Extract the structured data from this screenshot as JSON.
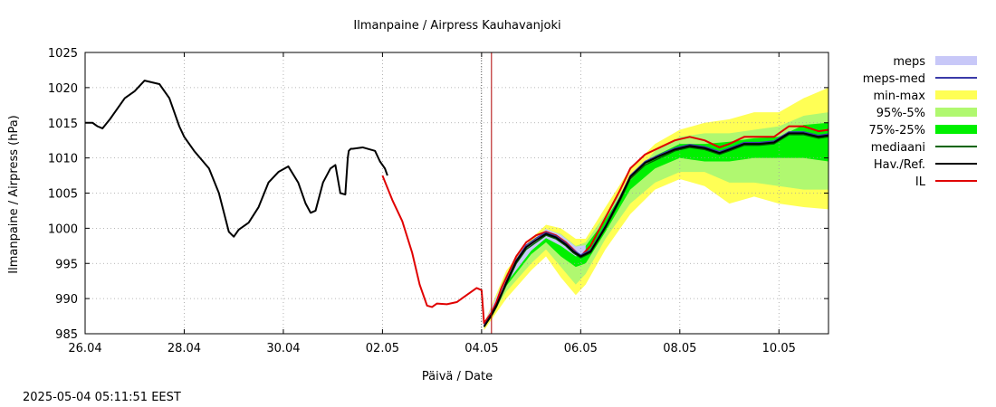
{
  "chart_data": {
    "type": "line",
    "title": "Ilmanpaine / Airpress Kauhavanjoki",
    "xlabel": "Päivä / Date",
    "ylabel": "Ilmanpaine / Airpress (hPa)",
    "timestamp": "2025-05-04 05:11:51 EEST",
    "x_unit": "days from 26.04",
    "xlim": [
      0,
      15
    ],
    "ylim": [
      985,
      1025
    ],
    "x_ticks": [
      {
        "x": 0,
        "label": "26.04"
      },
      {
        "x": 2,
        "label": "28.04"
      },
      {
        "x": 4,
        "label": "30.04"
      },
      {
        "x": 6,
        "label": "02.05"
      },
      {
        "x": 8,
        "label": "04.05"
      },
      {
        "x": 10,
        "label": "06.05"
      },
      {
        "x": 12,
        "label": "08.05"
      },
      {
        "x": 14,
        "label": "10.05"
      }
    ],
    "y_ticks": [
      985,
      990,
      995,
      1000,
      1005,
      1010,
      1015,
      1020,
      1025
    ],
    "grid": true,
    "legend_position": "right",
    "now_marker_x": 8.2,
    "legend": [
      {
        "label": "meps",
        "kind": "band",
        "color": "#c8c8f8"
      },
      {
        "label": "meps-med",
        "kind": "line",
        "color": "#3a3aa8"
      },
      {
        "label": "min-max",
        "kind": "band",
        "color": "#ffff55"
      },
      {
        "label": "95%-5%",
        "kind": "band",
        "color": "#b0f870"
      },
      {
        "label": "75%-25%",
        "kind": "band",
        "color": "#00f000"
      },
      {
        "label": "mediaani",
        "kind": "line",
        "color": "#006400"
      },
      {
        "label": "Hav./Ref.",
        "kind": "line",
        "color": "#000000"
      },
      {
        "label": "IL",
        "kind": "line",
        "color": "#e00000"
      }
    ],
    "series": [
      {
        "name": "Hav./Ref.",
        "color": "#000000",
        "x": [
          0,
          0.15,
          0.25,
          0.35,
          0.5,
          0.8,
          1.0,
          1.2,
          1.5,
          1.7,
          1.9,
          2.0,
          2.2,
          2.5,
          2.7,
          2.9,
          3.0,
          3.1,
          3.3,
          3.5,
          3.7,
          3.9,
          4.1,
          4.3,
          4.45,
          4.55,
          4.65,
          4.8,
          4.95,
          5.05,
          5.15,
          5.25,
          5.3,
          5.32,
          5.36,
          5.4,
          5.6,
          5.85,
          5.95,
          6.05,
          6.1
        ],
        "y": [
          1015,
          1015,
          1014.5,
          1014.2,
          1015.5,
          1018.5,
          1019.5,
          1021,
          1020.5,
          1018.5,
          1014.5,
          1013,
          1011,
          1008.5,
          1005,
          999.5,
          998.8,
          999.8,
          1000.8,
          1003,
          1006.5,
          1008,
          1008.8,
          1006.5,
          1003.5,
          1002.2,
          1002.5,
          1006.5,
          1008.5,
          1009,
          1005,
          1004.8,
          1010,
          1011,
          1011.3,
          1011.3,
          1011.5,
          1011,
          1009.5,
          1008.5,
          1007.5
        ]
      },
      {
        "name": "IL",
        "color": "#e00000",
        "x": [
          6.0,
          6.2,
          6.4,
          6.6,
          6.75,
          6.9,
          7.0,
          7.1,
          7.3,
          7.5,
          7.7,
          7.9,
          8.0,
          8.05,
          8.1,
          8.2,
          8.3,
          8.4,
          8.5,
          8.7,
          8.9,
          9.1,
          9.3,
          9.5,
          9.7,
          9.85,
          10.0,
          10.2,
          10.5,
          10.8,
          11.0,
          11.3,
          11.6,
          11.9,
          12.2,
          12.5,
          12.8,
          13.0,
          13.3,
          13.6,
          13.9,
          14.2,
          14.5,
          14.8,
          15.0
        ],
        "y": [
          1007.5,
          1004,
          1001,
          996.5,
          992,
          989,
          988.8,
          989.3,
          989.2,
          989.5,
          990.5,
          991.5,
          991.2,
          986.5,
          987,
          988,
          989.5,
          991.5,
          993,
          996,
          998,
          999,
          999.5,
          999,
          998,
          997,
          996,
          997.5,
          1001.5,
          1005.5,
          1008.5,
          1010.5,
          1011.5,
          1012.5,
          1013,
          1012.5,
          1011.5,
          1012,
          1013,
          1013,
          1013,
          1014.5,
          1014.5,
          1013.8,
          1014
        ]
      },
      {
        "name": "mediaani",
        "color": "#006400",
        "x": [
          8.05,
          8.2,
          8.3,
          8.5,
          8.7,
          8.9,
          9.1,
          9.3,
          9.5,
          9.7,
          9.85,
          10.0,
          10.2,
          10.5,
          10.8,
          11.0,
          11.3,
          11.6,
          11.9,
          12.2,
          12.5,
          12.8,
          13.0,
          13.3,
          13.6,
          13.9,
          14.2,
          14.5,
          14.8,
          15.0
        ],
        "y": [
          986,
          987.5,
          988.8,
          992,
          995,
          997,
          998,
          999,
          998.5,
          997.5,
          996.5,
          995.8,
          996.5,
          1000,
          1004,
          1007,
          1009,
          1010,
          1011,
          1011.5,
          1011.2,
          1010.5,
          1011,
          1011.8,
          1011.8,
          1012,
          1013.3,
          1013.3,
          1012.8,
          1013
        ]
      },
      {
        "name": "meps-med",
        "color": "#3a3aa8",
        "x": [
          8.05,
          8.2,
          8.3,
          8.5,
          8.7,
          8.9,
          9.1,
          9.3,
          9.5,
          9.7,
          9.85,
          10.0,
          10.2,
          10.5,
          10.8,
          11.0,
          11.3,
          11.6,
          11.9,
          12.2,
          12.5,
          12.8,
          13.0,
          13.3,
          13.6,
          13.9,
          14.2,
          14.5,
          14.8,
          15.0
        ],
        "y": [
          986.2,
          987.8,
          989.1,
          992.4,
          995.5,
          997.6,
          998.6,
          999.4,
          998.9,
          997.9,
          996.9,
          996.2,
          996.9,
          1000.4,
          1004.5,
          1007.5,
          1009.5,
          1010.5,
          1011.4,
          1011.9,
          1011.6,
          1010.9,
          1011.4,
          1012.2,
          1012.2,
          1012.4,
          1013.7,
          1013.7,
          1013.2,
          1013.4
        ]
      },
      {
        "name": "Hav./Ref. forecast",
        "color": "#000000",
        "x": [
          8.05,
          8.2,
          8.3,
          8.5,
          8.7,
          8.9,
          9.1,
          9.3,
          9.5,
          9.7,
          9.85,
          10.0,
          10.2,
          10.5,
          10.8,
          11.0,
          11.3,
          11.6,
          11.9,
          12.2,
          12.5,
          12.8,
          13.0,
          13.3,
          13.6,
          13.9,
          14.2,
          14.5,
          14.8,
          15.0
        ],
        "y": [
          986,
          987.7,
          989,
          992.3,
          995.3,
          997.3,
          998.3,
          999.2,
          998.7,
          997.7,
          996.7,
          996,
          996.7,
          1000.2,
          1004.3,
          1007.3,
          1009.3,
          1010.3,
          1011.2,
          1011.7,
          1011.4,
          1010.7,
          1011.2,
          1012,
          1012,
          1012.2,
          1013.5,
          1013.5,
          1013,
          1013.2
        ]
      }
    ],
    "bands": [
      {
        "name": "min-max",
        "color": "#ffff55",
        "x": [
          8.05,
          8.5,
          9.0,
          9.3,
          9.6,
          9.9,
          10.1,
          10.5,
          11.0,
          11.5,
          12.0,
          12.5,
          13.0,
          13.5,
          14.0,
          14.5,
          15.0
        ],
        "lower": [
          985.5,
          990,
          994,
          996,
          993,
          990.5,
          992,
          997,
          1002,
          1005.5,
          1007,
          1006,
          1003.5,
          1004.5,
          1003.5,
          1003,
          1002.7
        ],
        "upper": [
          986.5,
          994,
          998.5,
          1000.5,
          1000,
          998.5,
          998.5,
          1003,
          1008.5,
          1012,
          1014,
          1015,
          1015.5,
          1016.5,
          1016.5,
          1018.5,
          1020
        ]
      },
      {
        "name": "95%-5%",
        "color": "#b0f870",
        "x": [
          8.05,
          8.5,
          9.0,
          9.3,
          9.6,
          9.9,
          10.1,
          10.5,
          11.0,
          11.5,
          12.0,
          12.5,
          13.0,
          13.5,
          14.0,
          14.5,
          15.0
        ],
        "lower": [
          985.8,
          991,
          995,
          997,
          994.5,
          992,
          993.5,
          998.5,
          1003.5,
          1006.5,
          1008,
          1008,
          1006.5,
          1006.5,
          1006,
          1005.5,
          1005.5
        ],
        "upper": [
          986.3,
          993.5,
          997.8,
          999.8,
          999.2,
          997.5,
          998,
          1002,
          1007,
          1011,
          1013,
          1013.5,
          1013.5,
          1014,
          1014.5,
          1016,
          1016.5
        ]
      },
      {
        "name": "75%-25%",
        "color": "#00f000",
        "x": [
          8.05,
          8.5,
          9.0,
          9.3,
          9.6,
          9.9,
          10.1,
          10.5,
          11.0,
          11.5,
          12.0,
          12.5,
          13.0,
          13.5,
          14.0,
          14.5,
          15.0
        ],
        "lower": [
          985.9,
          991.8,
          996.3,
          998,
          996,
          994.5,
          995,
          999.5,
          1005.5,
          1008.5,
          1010,
          1009.5,
          1009.5,
          1010,
          1010,
          1010,
          1009.5
        ],
        "upper": [
          986.2,
          993,
          997.6,
          999.6,
          998.8,
          997,
          997.5,
          1001.2,
          1006.8,
          1010.3,
          1012,
          1012,
          1012.3,
          1012.8,
          1013,
          1014.7,
          1015
        ]
      },
      {
        "name": "meps",
        "color": "#c8c8f8",
        "x": [
          8.05,
          8.5,
          9.0,
          9.3,
          9.6,
          9.9,
          10.1
        ],
        "lower": [
          986,
          992.2,
          996.8,
          998.6,
          997.5,
          996,
          996.4
        ],
        "upper": [
          986.5,
          993.3,
          998.1,
          999.9,
          999.1,
          997.4,
          997.6
        ]
      }
    ]
  }
}
